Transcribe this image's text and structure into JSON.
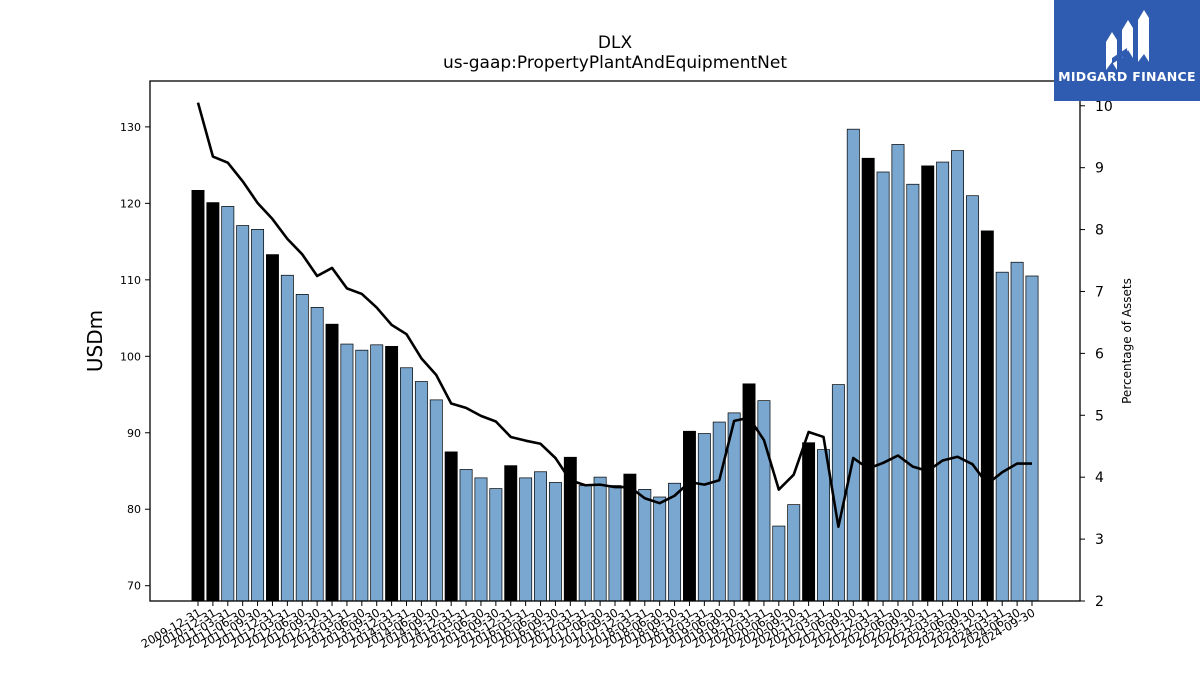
{
  "brand": {
    "name": "MIDGARD FINANCE",
    "logo_color": "#2f5bb0"
  },
  "colors": {
    "bar_default": "#7aa7d0",
    "bar_highlight": "#000000",
    "line": "#000000"
  },
  "chart_data": {
    "type": "bar",
    "title": "DLX",
    "subtitle": "us-gaap:PropertyPlantAndEquipmentNet",
    "ylabel": "USDm",
    "y2label": "Percentage of Assets",
    "ylim": [
      68,
      136
    ],
    "y2lim": [
      2,
      10.4
    ],
    "yticks": [
      70,
      80,
      90,
      100,
      110,
      120,
      130
    ],
    "y2ticks": [
      2,
      3,
      4,
      5,
      6,
      7,
      8,
      9,
      10
    ],
    "grid": false,
    "categories": [
      "2009-12-31",
      "2010-12-31",
      "2011-03-31",
      "2011-06-30",
      "2011-09-30",
      "2011-12-31",
      "2012-03-31",
      "2012-06-30",
      "2012-09-30",
      "2012-12-31",
      "2013-03-31",
      "2013-06-30",
      "2013-09-30",
      "2013-12-31",
      "2014-03-31",
      "2014-06-30",
      "2014-09-30",
      "2014-12-31",
      "2015-03-31",
      "2015-06-30",
      "2015-09-30",
      "2015-12-31",
      "2016-03-31",
      "2016-06-30",
      "2016-09-30",
      "2016-12-31",
      "2017-03-31",
      "2017-06-30",
      "2017-09-30",
      "2017-12-31",
      "2018-03-31",
      "2018-06-30",
      "2018-09-30",
      "2018-12-31",
      "2019-03-31",
      "2019-06-30",
      "2019-09-30",
      "2019-12-31",
      "2020-03-31",
      "2020-06-30",
      "2020-09-30",
      "2020-12-31",
      "2021-03-31",
      "2021-06-30",
      "2021-09-30",
      "2021-12-31",
      "2022-03-31",
      "2022-06-30",
      "2022-09-30",
      "2022-12-31",
      "2023-03-31",
      "2023-06-30",
      "2023-09-30",
      "2023-12-31",
      "2024-03-31",
      "2024-06-30",
      "2024-09-30"
    ],
    "series": [
      {
        "kind": "bar",
        "values": [
          121.7,
          120.1,
          119.6,
          117.1,
          116.6,
          113.3,
          110.6,
          108.1,
          106.4,
          104.2,
          101.6,
          100.8,
          101.5,
          101.3,
          98.5,
          96.7,
          94.3,
          87.5,
          85.2,
          84.1,
          82.7,
          85.7,
          84.1,
          84.9,
          83.5,
          86.8,
          83.1,
          84.2,
          83.1,
          84.6,
          82.6,
          81.6,
          83.4,
          90.2,
          89.9,
          91.4,
          92.6,
          96.4,
          94.2,
          77.8,
          80.6,
          88.7,
          87.8,
          96.3,
          129.7,
          125.9,
          124.1,
          127.7,
          122.5,
          124.9,
          125.4,
          126.9,
          121.0,
          116.4,
          111.0,
          112.3,
          110.5
        ],
        "highlight": [
          true,
          true,
          false,
          false,
          false,
          true,
          false,
          false,
          false,
          true,
          false,
          false,
          false,
          true,
          false,
          false,
          false,
          true,
          false,
          false,
          false,
          true,
          false,
          false,
          false,
          true,
          false,
          false,
          false,
          true,
          false,
          false,
          false,
          true,
          false,
          false,
          false,
          true,
          false,
          false,
          false,
          true,
          false,
          false,
          false,
          true,
          false,
          false,
          false,
          true,
          false,
          false,
          false,
          true,
          false,
          false,
          false
        ]
      },
      {
        "kind": "line",
        "axis": "right",
        "values": [
          10.05,
          9.18,
          9.08,
          8.78,
          8.43,
          8.17,
          7.85,
          7.6,
          7.25,
          7.38,
          7.05,
          6.96,
          6.74,
          6.46,
          6.31,
          5.92,
          5.65,
          5.19,
          5.12,
          4.99,
          4.9,
          4.65,
          4.59,
          4.54,
          4.31,
          3.95,
          3.87,
          3.88,
          3.84,
          3.84,
          3.66,
          3.58,
          3.7,
          3.92,
          3.88,
          3.95,
          4.91,
          4.96,
          4.6,
          3.8,
          4.04,
          4.73,
          4.65,
          3.2,
          4.31,
          4.14,
          4.23,
          4.35,
          4.17,
          4.1,
          4.27,
          4.33,
          4.21,
          3.89,
          4.08,
          4.22,
          4.22
        ]
      }
    ]
  }
}
